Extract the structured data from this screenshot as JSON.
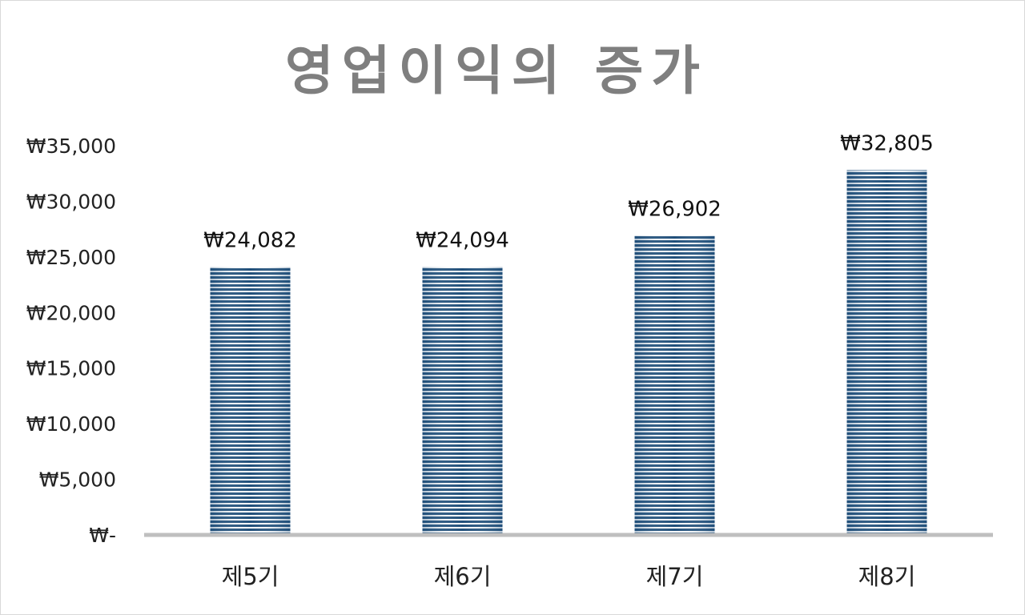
{
  "chart_data": {
    "type": "bar",
    "title": "영업이익의 증가",
    "xlabel": "",
    "ylabel": "",
    "categories": [
      "제5기",
      "제6기",
      "제7기",
      "제8기"
    ],
    "values": [
      24082,
      24094,
      26902,
      32805
    ],
    "data_labels": [
      "₩24,082",
      "₩24,094",
      "₩26,902",
      "₩32,805"
    ],
    "ylim": [
      0,
      35000
    ],
    "yticks": [
      {
        "value": 35000,
        "label": "₩35,000"
      },
      {
        "value": 30000,
        "label": "₩30,000"
      },
      {
        "value": 25000,
        "label": "₩25,000"
      },
      {
        "value": 20000,
        "label": "₩20,000"
      },
      {
        "value": 15000,
        "label": "₩15,000"
      },
      {
        "value": 10000,
        "label": "₩10,000"
      },
      {
        "value": 5000,
        "label": "₩5,000"
      },
      {
        "value": 0,
        "label": "₩-"
      }
    ],
    "grid": false,
    "legend": "none",
    "colors": {
      "bar_stripe_dark": "#1f4e79",
      "bar_stripe_light": "#ffffff",
      "axis_line": "#bfbfbf",
      "title": "#7f7f7f"
    }
  }
}
